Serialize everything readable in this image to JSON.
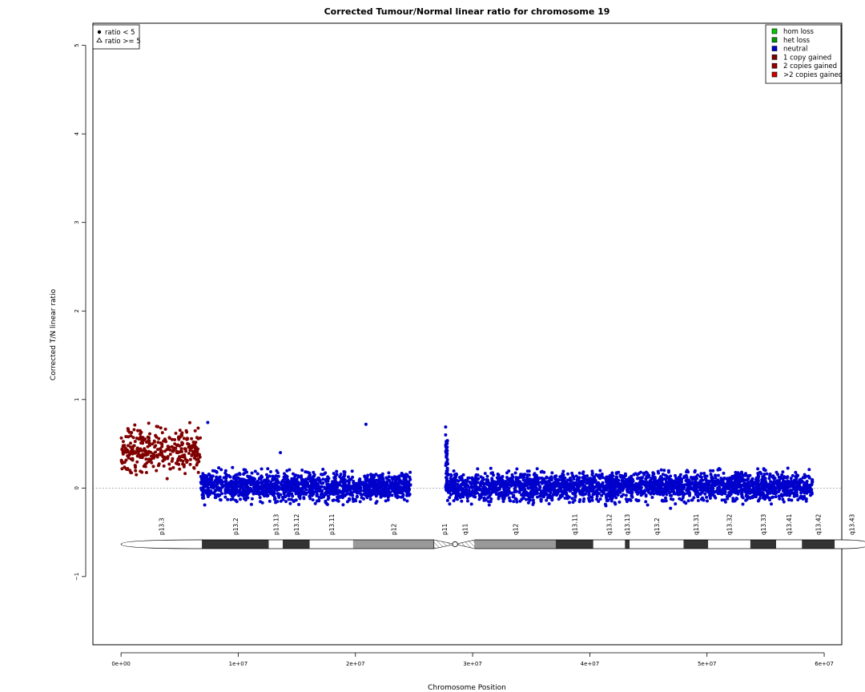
{
  "chart_data": {
    "type": "scatter",
    "title": "Corrected Tumour/Normal linear ratio for chromosome  19",
    "xlabel": "Chromosome Position",
    "ylabel": "Corrected T/N linear ratio",
    "xlim": [
      -2400000,
      61500000
    ],
    "ylim": [
      -1.77,
      5.25
    ],
    "x_ticks": [
      0,
      10000000,
      20000000,
      30000000,
      40000000,
      50000000,
      60000000
    ],
    "x_tick_labels": [
      "0e+00",
      "1e+07",
      "2e+07",
      "3e+07",
      "4e+07",
      "5e+07",
      "6e+07"
    ],
    "y_ticks": [
      -1,
      0,
      1,
      2,
      3,
      4,
      5
    ],
    "y_tick_labels": [
      "−1",
      "0",
      "1",
      "2",
      "3",
      "4",
      "5"
    ],
    "reference_line": 0,
    "shape_legend": {
      "placement": "top-left",
      "entries": [
        {
          "symbol": "filled-circle",
          "label": "ratio < 5"
        },
        {
          "symbol": "open-triangle",
          "label": "ratio >= 5"
        }
      ]
    },
    "color_legend": {
      "placement": "top-right",
      "entries": [
        {
          "label": "hom loss",
          "color": "#00cc00"
        },
        {
          "label": "het loss",
          "color": "#009900"
        },
        {
          "label": "neutral",
          "color": "#0000cc"
        },
        {
          "label": "1 copy gained",
          "color": "#800000"
        },
        {
          "label": "2 copies gained",
          "color": "#990000"
        },
        {
          "label": ">2 copies gained",
          "color": "#cc0000"
        }
      ]
    },
    "series": [
      {
        "name": "1 copy gained",
        "color": "#800000",
        "x_range": [
          0,
          6800000
        ],
        "mean": 0.43,
        "sd": 0.17,
        "points_approx": 330
      },
      {
        "name": "neutral",
        "color": "#0000cc",
        "x_range": [
          6800000,
          24700000
        ],
        "mean": 0.02,
        "sd": 0.11,
        "points_approx": 1500
      },
      {
        "name": "neutral",
        "color": "#0000cc",
        "x_range": [
          27700000,
          59000000
        ],
        "mean": 0.02,
        "sd": 0.11,
        "points_approx": 2600
      }
    ],
    "notable_points": [
      {
        "x": 7400000,
        "y": 0.74,
        "status": "neutral"
      },
      {
        "x": 20900000,
        "y": 0.72,
        "status": "neutral"
      },
      {
        "x": 13600000,
        "y": 0.4,
        "status": "neutral"
      },
      {
        "x": 27700000,
        "y": 0.69,
        "status": "neutral"
      },
      {
        "x": 27700000,
        "y": 0.6,
        "status": "neutral"
      },
      {
        "x": 27750000,
        "y": 0.5,
        "status": "neutral"
      },
      {
        "x": 27750000,
        "y": 0.43,
        "status": "neutral"
      }
    ],
    "ideogram": {
      "bands": [
        {
          "name": "p13.3",
          "start": 0,
          "end": 6900000,
          "stain": "gneg"
        },
        {
          "name": "p13.2",
          "start": 6900000,
          "end": 12600000,
          "stain": "gpos"
        },
        {
          "name": "p13.13",
          "start": 12600000,
          "end": 13800000,
          "stain": "gneg"
        },
        {
          "name": "p13.12",
          "start": 13800000,
          "end": 16100000,
          "stain": "gpos"
        },
        {
          "name": "p13.11",
          "start": 16100000,
          "end": 19800000,
          "stain": "gneg"
        },
        {
          "name": "p12",
          "start": 19800000,
          "end": 26700000,
          "stain": "gvar"
        },
        {
          "name": "p11",
          "start": 26700000,
          "end": 28500000,
          "stain": "acen"
        },
        {
          "name": "q11",
          "start": 28500000,
          "end": 30200000,
          "stain": "acen"
        },
        {
          "name": "q12",
          "start": 30200000,
          "end": 37100000,
          "stain": "gvar"
        },
        {
          "name": "q13.11",
          "start": 37100000,
          "end": 40300000,
          "stain": "gpos"
        },
        {
          "name": "q13.12",
          "start": 40300000,
          "end": 43000000,
          "stain": "gneg"
        },
        {
          "name": "q13.13",
          "start": 43000000,
          "end": 43400000,
          "stain": "gpos"
        },
        {
          "name": "q13.2",
          "start": 43400000,
          "end": 48000000,
          "stain": "gneg"
        },
        {
          "name": "q13.31",
          "start": 48000000,
          "end": 50100000,
          "stain": "gpos"
        },
        {
          "name": "q13.32",
          "start": 50100000,
          "end": 53700000,
          "stain": "gneg"
        },
        {
          "name": "q13.33",
          "start": 53700000,
          "end": 55900000,
          "stain": "gpos"
        },
        {
          "name": "q13.41",
          "start": 55900000,
          "end": 58100000,
          "stain": "gneg"
        },
        {
          "name": "q13.42",
          "start": 58100000,
          "end": 60900000,
          "stain": "gpos"
        },
        {
          "name": "q13.43",
          "start": 60900000,
          "end": 63800000,
          "stain": "gneg"
        }
      ],
      "stain_colors": {
        "gneg": "#ffffff",
        "gpos": "#333333",
        "gvar": "#999999",
        "acen": "hatched"
      }
    }
  }
}
